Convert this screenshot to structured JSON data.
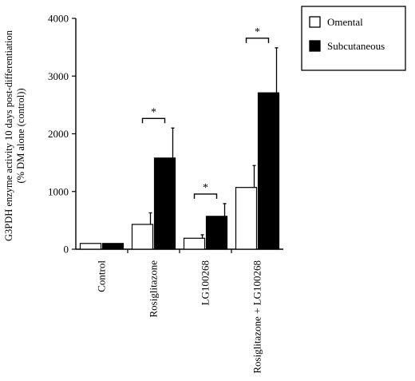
{
  "chart_data": {
    "type": "bar",
    "ylabel_line1": "G3PDH enzyme activity 10 days post-differentiation",
    "ylabel_line2": "(% DM alone (control))",
    "categories": [
      "Control",
      "Rosiglitazone",
      "LG100268",
      "Rosiglitazone + LG100268"
    ],
    "series": [
      {
        "name": "Omental",
        "values": [
          100,
          430,
          190,
          1070
        ],
        "errors": [
          0,
          200,
          60,
          380
        ],
        "color": "#ffffff"
      },
      {
        "name": "Subcutaneous",
        "values": [
          100,
          1580,
          570,
          2710
        ],
        "errors": [
          0,
          520,
          220,
          780
        ],
        "color": "#000000"
      }
    ],
    "ylim": [
      0,
      4000
    ],
    "yticks": [
      0,
      1000,
      2000,
      3000,
      4000
    ],
    "significance": [
      "",
      "*",
      "*",
      "*"
    ],
    "legend_position": "top-right",
    "grid": false
  }
}
